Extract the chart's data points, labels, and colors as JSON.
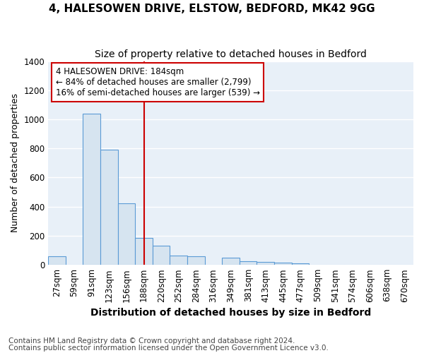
{
  "title1": "4, HALESOWEN DRIVE, ELSTOW, BEDFORD, MK42 9GG",
  "title2": "Size of property relative to detached houses in Bedford",
  "xlabel": "Distribution of detached houses by size in Bedford",
  "ylabel": "Number of detached properties",
  "footnote1": "Contains HM Land Registry data © Crown copyright and database right 2024.",
  "footnote2": "Contains public sector information licensed under the Open Government Licence v3.0.",
  "categories": [
    "27sqm",
    "59sqm",
    "91sqm",
    "123sqm",
    "156sqm",
    "188sqm",
    "220sqm",
    "252sqm",
    "284sqm",
    "316sqm",
    "349sqm",
    "381sqm",
    "413sqm",
    "445sqm",
    "477sqm",
    "509sqm",
    "541sqm",
    "574sqm",
    "606sqm",
    "638sqm",
    "670sqm"
  ],
  "values": [
    57,
    0,
    1040,
    790,
    425,
    185,
    130,
    65,
    60,
    0,
    50,
    25,
    20,
    15,
    10,
    0,
    0,
    0,
    0,
    0,
    0
  ],
  "bar_color": "#d6e4f0",
  "bar_edge_color": "#5b9bd5",
  "vline_x_index": 5,
  "vline_color": "#cc0000",
  "annotation_text": "4 HALESOWEN DRIVE: 184sqm\n← 84% of detached houses are smaller (2,799)\n16% of semi-detached houses are larger (539) →",
  "annotation_box_color": "#ffffff",
  "annotation_box_edge": "#cc0000",
  "ylim": [
    0,
    1400
  ],
  "yticks": [
    0,
    200,
    400,
    600,
    800,
    1000,
    1200,
    1400
  ],
  "background_color": "#ffffff",
  "plot_bg_color": "#e8f0f8",
  "grid_color": "#ffffff",
  "title1_fontsize": 11,
  "title2_fontsize": 10,
  "xlabel_fontsize": 10,
  "ylabel_fontsize": 9,
  "tick_fontsize": 8.5,
  "annotation_fontsize": 8.5,
  "footnote_fontsize": 7.5
}
